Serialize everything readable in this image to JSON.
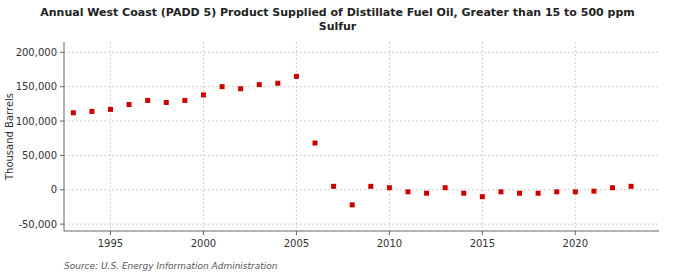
{
  "chart_data": {
    "type": "scatter",
    "title": "Annual West Coast (PADD 5) Product Supplied of Distillate Fuel Oil, Greater than 15 to 500 ppm\nSulfur",
    "y_label": "Thousand Barrels",
    "source": "Source: U.S. Energy Information Administration",
    "x": [
      1993,
      1994,
      1995,
      1996,
      1997,
      1998,
      1999,
      2000,
      2001,
      2002,
      2003,
      2004,
      2005,
      2006,
      2007,
      2008,
      2009,
      2010,
      2011,
      2012,
      2013,
      2014,
      2015,
      2016,
      2017,
      2018,
      2019,
      2020,
      2021,
      2022,
      2023
    ],
    "values": [
      112000,
      114000,
      117000,
      124000,
      130000,
      127000,
      130000,
      138000,
      150000,
      147000,
      153000,
      155000,
      165000,
      68000,
      5000,
      -22000,
      5000,
      3000,
      -3000,
      -5000,
      3000,
      -5000,
      -10000,
      -3000,
      -5000,
      -5000,
      -3000,
      -3000,
      -2000,
      3000,
      5000
    ],
    "color": "#cc0000",
    "marker": "square",
    "xlim": [
      1992.5,
      2024.5
    ],
    "xticks": [
      1995,
      2000,
      2005,
      2010,
      2015,
      2020
    ],
    "ylim": [
      -60000,
      215000
    ],
    "yticks": [
      {
        "value": -50000,
        "label": "-50,000"
      },
      0,
      {
        "value": 50000,
        "label": "50,000"
      },
      {
        "value": 100000,
        "label": "100,000"
      },
      {
        "value": 150000,
        "label": "150,000"
      },
      {
        "value": 200000,
        "label": "200,000"
      }
    ],
    "grid": true
  }
}
